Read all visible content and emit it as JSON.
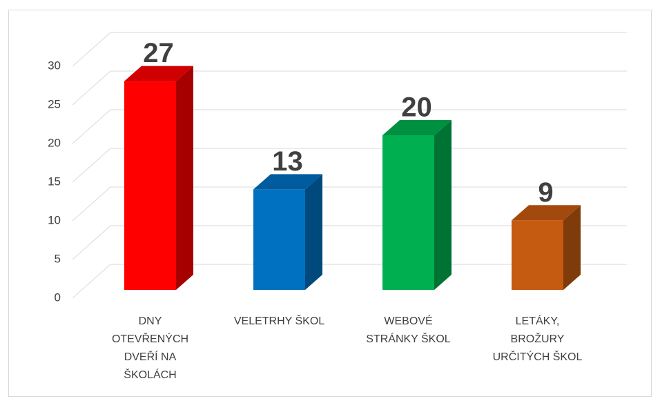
{
  "chart_data": {
    "type": "bar3d",
    "categories": [
      [
        "DNY",
        "OTEVŘENÝCH",
        "DVEŘÍ NA",
        "ŠKOLÁCH"
      ],
      [
        "VELETRHY ŠKOL"
      ],
      [
        "WEBOVÉ",
        "STRÁNKY ŠKOL"
      ],
      [
        "LETÁKY,",
        "BROŽURY",
        "URČITÝCH ŠKOL"
      ]
    ],
    "values": [
      27,
      13,
      20,
      9
    ],
    "colors": [
      "#ff0000",
      "#0070c0",
      "#00b050",
      "#c55a11"
    ],
    "ylim": [
      0,
      30
    ],
    "yticks": [
      0,
      5,
      10,
      15,
      20,
      25,
      30
    ],
    "grid": true
  }
}
